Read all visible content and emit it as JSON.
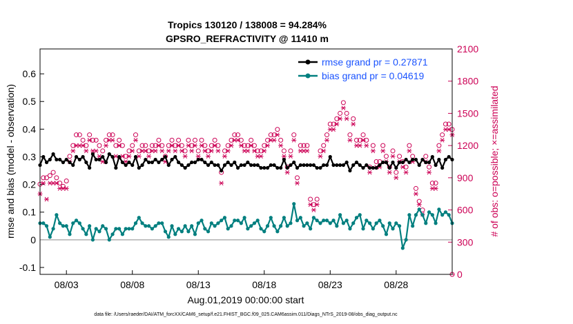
{
  "chart_data": {
    "type": "line",
    "title": "Tropics 130120 / 138008 = 94.284%",
    "subtitle": "GPSRO_REFRACTIVITY @ 11410 m",
    "xlabel": "Aug.01,2019 00:00:00 start",
    "ylabel": "rmse and bias (model - observation)",
    "ylabel_right": "# of obs: o=possible; ×=assimilated",
    "footer": "data file: /Users/raeder/DAI/ATM_forcXX/CAM6_setup/f.e21.FHIST_BGC.f09_025.CAM6assim.011/Diags_NTrS_2019-08/obs_diag_output.nc",
    "xlim": [
      1.0,
      32.25
    ],
    "ylim": [
      -0.125,
      0.69
    ],
    "ylim_right": [
      -0.0,
      2100.0
    ],
    "x_ticks": [
      {
        "value": 3,
        "label": "08/03"
      },
      {
        "value": 8,
        "label": "08/08"
      },
      {
        "value": 13,
        "label": "08/13"
      },
      {
        "value": 18,
        "label": "08/18"
      },
      {
        "value": 23,
        "label": "08/23"
      },
      {
        "value": 28,
        "label": "08/28"
      }
    ],
    "y_ticks": [
      {
        "value": -0.1,
        "label": "-0.1"
      },
      {
        "value": 0,
        "label": "0"
      },
      {
        "value": 0.1,
        "label": "0.1"
      },
      {
        "value": 0.2,
        "label": "0.2"
      },
      {
        "value": 0.3,
        "label": "0.3"
      },
      {
        "value": 0.4,
        "label": "0.4"
      },
      {
        "value": 0.5,
        "label": "0.5"
      },
      {
        "value": 0.6,
        "label": "0.6"
      }
    ],
    "y_ticks_right": [
      {
        "value": 0,
        "label": "0"
      },
      {
        "value": 300,
        "label": "300"
      },
      {
        "value": 600,
        "label": "600"
      },
      {
        "value": 900,
        "label": "900"
      },
      {
        "value": 1200,
        "label": "1200"
      },
      {
        "value": 1500,
        "label": "1500"
      },
      {
        "value": 1800,
        "label": "1800"
      },
      {
        "value": 2100,
        "label": "2100"
      }
    ],
    "legend_position": "top-right",
    "colors": {
      "rmse": "#000000",
      "bias": "#007f7f",
      "obs": "#cc0055",
      "zero_line": "#b0b0b0",
      "legend_text": "#1a53ff"
    },
    "series": [
      {
        "name": "rmse grand pr = 0.27871",
        "x": [
          1.0,
          1.25,
          1.5,
          1.75,
          2.0,
          2.25,
          2.5,
          2.75,
          3.0,
          3.25,
          3.5,
          3.75,
          4.0,
          4.25,
          4.5,
          4.75,
          5.0,
          5.25,
          5.5,
          5.75,
          6.0,
          6.25,
          6.5,
          6.75,
          7.0,
          7.25,
          7.5,
          7.75,
          8.0,
          8.25,
          8.5,
          8.75,
          9.0,
          9.25,
          9.5,
          9.75,
          10.0,
          10.25,
          10.5,
          10.75,
          11.0,
          11.25,
          11.5,
          11.75,
          12.0,
          12.25,
          12.5,
          12.75,
          13.0,
          13.25,
          13.5,
          13.75,
          14.0,
          14.25,
          14.5,
          14.75,
          15.0,
          15.25,
          15.5,
          15.75,
          16.0,
          16.25,
          16.5,
          16.75,
          17.0,
          17.25,
          17.5,
          17.75,
          18.0,
          18.25,
          18.5,
          18.75,
          19.0,
          19.25,
          19.5,
          19.75,
          20.0,
          20.25,
          20.5,
          20.75,
          21.0,
          21.25,
          21.5,
          21.75,
          22.0,
          22.25,
          22.5,
          22.75,
          23.0,
          23.25,
          23.5,
          23.75,
          24.0,
          24.25,
          24.5,
          24.75,
          25.0,
          25.25,
          25.5,
          25.75,
          26.0,
          26.25,
          26.5,
          26.75,
          27.0,
          27.25,
          27.5,
          27.75,
          28.0,
          28.25,
          28.5,
          28.75,
          29.0,
          29.25,
          29.5,
          29.75,
          30.0,
          30.25,
          30.5,
          30.75,
          31.0,
          31.25,
          31.5,
          31.75,
          32.0,
          32.25
        ],
        "values": [
          0.27,
          0.3,
          0.28,
          0.29,
          0.31,
          0.29,
          0.29,
          0.28,
          0.29,
          0.28,
          0.27,
          0.3,
          0.29,
          0.3,
          0.28,
          0.26,
          0.31,
          0.29,
          0.29,
          0.3,
          0.28,
          0.31,
          0.3,
          0.26,
          0.3,
          0.28,
          0.27,
          0.28,
          0.27,
          0.3,
          0.26,
          0.27,
          0.29,
          0.28,
          0.28,
          0.29,
          0.28,
          0.29,
          0.3,
          0.27,
          0.29,
          0.3,
          0.28,
          0.27,
          0.26,
          0.27,
          0.28,
          0.28,
          0.29,
          0.29,
          0.28,
          0.27,
          0.28,
          0.27,
          0.27,
          0.25,
          0.27,
          0.28,
          0.27,
          0.28,
          0.26,
          0.27,
          0.27,
          0.28,
          0.27,
          0.27,
          0.27,
          0.26,
          0.26,
          0.26,
          0.27,
          0.27,
          0.26,
          0.26,
          0.29,
          0.26,
          0.27,
          0.28,
          0.26,
          0.27,
          0.27,
          0.27,
          0.27,
          0.27,
          0.26,
          0.26,
          0.27,
          0.27,
          0.3,
          0.27,
          0.27,
          0.27,
          0.27,
          0.28,
          0.25,
          0.27,
          0.28,
          0.27,
          0.26,
          0.27,
          0.26,
          0.26,
          0.26,
          0.27,
          0.28,
          0.28,
          0.26,
          0.28,
          0.26,
          0.28,
          0.28,
          0.29,
          0.28,
          0.29,
          0.29,
          0.27,
          0.29,
          0.28,
          0.28,
          0.3,
          0.27,
          0.29,
          0.26,
          0.29,
          0.3,
          0.29
        ]
      },
      {
        "name": "bias grand pr = 0.04619",
        "x": [
          1.0,
          1.25,
          1.5,
          1.75,
          2.0,
          2.25,
          2.5,
          2.75,
          3.0,
          3.25,
          3.5,
          3.75,
          4.0,
          4.25,
          4.5,
          4.75,
          5.0,
          5.25,
          5.5,
          5.75,
          6.0,
          6.25,
          6.5,
          6.75,
          7.0,
          7.25,
          7.5,
          7.75,
          8.0,
          8.25,
          8.5,
          8.75,
          9.0,
          9.25,
          9.5,
          9.75,
          10.0,
          10.25,
          10.5,
          10.75,
          11.0,
          11.25,
          11.5,
          11.75,
          12.0,
          12.25,
          12.5,
          12.75,
          13.0,
          13.25,
          13.5,
          13.75,
          14.0,
          14.25,
          14.5,
          14.75,
          15.0,
          15.25,
          15.5,
          15.75,
          16.0,
          16.25,
          16.5,
          16.75,
          17.0,
          17.25,
          17.5,
          17.75,
          18.0,
          18.25,
          18.5,
          18.75,
          19.0,
          19.25,
          19.5,
          19.75,
          20.0,
          20.25,
          20.5,
          20.75,
          21.0,
          21.25,
          21.5,
          21.75,
          22.0,
          22.25,
          22.5,
          22.75,
          23.0,
          23.25,
          23.5,
          23.75,
          24.0,
          24.25,
          24.5,
          24.75,
          25.0,
          25.25,
          25.5,
          25.75,
          26.0,
          26.25,
          26.5,
          26.75,
          27.0,
          27.25,
          27.5,
          27.75,
          28.0,
          28.25,
          28.5,
          28.75,
          29.0,
          29.25,
          29.5,
          29.75,
          30.0,
          30.25,
          30.5,
          30.75,
          31.0,
          31.25,
          31.5,
          31.75,
          32.0,
          32.25
        ],
        "values": [
          0.06,
          0.06,
          0.05,
          0.01,
          0.04,
          0.09,
          0.06,
          0.05,
          0.05,
          0.02,
          0.06,
          0.07,
          0.06,
          0.04,
          0.02,
          0.05,
          0.0,
          0.04,
          0.03,
          0.05,
          0.04,
          0.0,
          0.02,
          0.04,
          0.04,
          0.02,
          0.04,
          0.04,
          0.04,
          0.06,
          0.08,
          0.06,
          0.05,
          0.05,
          0.04,
          0.05,
          0.06,
          0.06,
          0.03,
          0.01,
          0.05,
          0.02,
          0.04,
          0.03,
          0.05,
          0.03,
          0.05,
          0.02,
          0.06,
          0.07,
          0.04,
          0.03,
          0.06,
          0.05,
          0.06,
          0.07,
          0.08,
          0.04,
          0.05,
          0.07,
          0.07,
          0.06,
          0.08,
          0.04,
          0.05,
          0.06,
          0.07,
          0.04,
          0.03,
          0.05,
          0.08,
          0.05,
          0.03,
          0.05,
          0.08,
          0.05,
          0.06,
          0.13,
          0.07,
          0.08,
          0.05,
          0.06,
          0.04,
          0.08,
          0.07,
          0.06,
          0.07,
          0.07,
          0.06,
          0.07,
          0.05,
          0.09,
          0.06,
          0.07,
          0.04,
          0.06,
          0.08,
          0.09,
          0.04,
          0.07,
          0.06,
          0.04,
          0.06,
          0.07,
          0.05,
          0.02,
          0.06,
          0.04,
          0.06,
          0.05,
          -0.03,
          0.0,
          0.09,
          0.05,
          0.09,
          0.11,
          0.09,
          0.06,
          0.1,
          0.09,
          0.06,
          0.11,
          0.09,
          0.1,
          0.09,
          0.06
        ]
      }
    ],
    "obs_possible": {
      "x": [
        1.0,
        1.25,
        1.5,
        1.75,
        2.0,
        2.25,
        2.5,
        2.75,
        3.0,
        3.25,
        3.5,
        3.75,
        4.0,
        4.25,
        4.5,
        4.75,
        5.0,
        5.25,
        5.5,
        5.75,
        6.0,
        6.25,
        6.5,
        6.75,
        7.0,
        7.25,
        7.5,
        7.75,
        8.0,
        8.25,
        8.5,
        8.75,
        9.0,
        9.25,
        9.5,
        9.75,
        10.0,
        10.25,
        10.5,
        10.75,
        11.0,
        11.25,
        11.5,
        11.75,
        12.0,
        12.25,
        12.5,
        12.75,
        13.0,
        13.25,
        13.5,
        13.75,
        14.0,
        14.25,
        14.5,
        14.75,
        15.0,
        15.25,
        15.5,
        15.75,
        16.0,
        16.25,
        16.5,
        16.75,
        17.0,
        17.25,
        17.5,
        17.75,
        18.0,
        18.25,
        18.5,
        18.75,
        19.0,
        19.25,
        19.5,
        19.75,
        20.0,
        20.25,
        20.5,
        20.75,
        21.0,
        21.25,
        21.5,
        21.75,
        22.0,
        22.25,
        22.5,
        22.75,
        23.0,
        23.25,
        23.5,
        23.75,
        24.0,
        24.25,
        24.5,
        24.75,
        25.0,
        25.25,
        25.5,
        25.75,
        26.0,
        26.25,
        26.5,
        26.75,
        27.0,
        27.25,
        27.5,
        27.75,
        28.0,
        28.25,
        28.5,
        28.75,
        29.0,
        29.25,
        29.5,
        29.75,
        30.0,
        30.25,
        30.5,
        30.75,
        31.0,
        31.25,
        31.5,
        31.75,
        32.0,
        32.25
      ],
      "values": [
        840,
        900,
        900,
        920,
        950,
        900,
        850,
        820,
        870,
        1100,
        1200,
        1300,
        1300,
        1250,
        1200,
        1300,
        1250,
        1250,
        1200,
        1150,
        1250,
        1300,
        1300,
        1200,
        1250,
        1200,
        1100,
        1150,
        1200,
        1300,
        1150,
        1200,
        1200,
        1150,
        1200,
        1200,
        1250,
        1200,
        1100,
        1200,
        1250,
        1200,
        1250,
        1200,
        1150,
        1250,
        1200,
        1250,
        1150,
        1250,
        1200,
        1150,
        1200,
        1250,
        1200,
        950,
        1150,
        1200,
        1250,
        1300,
        1300,
        1250,
        1200,
        1200,
        1250,
        1200,
        1150,
        1150,
        1200,
        1250,
        1300,
        1300,
        1350,
        1250,
        1150,
        1000,
        1150,
        1300,
        900,
        1200,
        1200,
        1200,
        700,
        650,
        700,
        1150,
        1200,
        1300,
        1400,
        1400,
        1450,
        1500,
        1600,
        1500,
        1300,
        1450,
        1250,
        1250,
        1300,
        1250,
        1000,
        1200,
        1050,
        1050,
        1200,
        1100,
        1000,
        1150,
        950,
        1100,
        1050,
        1000,
        1200,
        1100,
        800,
        680,
        600,
        1100,
        1000,
        850,
        850,
        1200,
        1300,
        1400,
        1400,
        1350
      ]
    },
    "obs_assimilated": {
      "x": [
        1.0,
        1.25,
        1.5,
        1.75,
        2.0,
        2.25,
        2.5,
        2.75,
        3.0,
        3.25,
        3.5,
        3.75,
        4.0,
        4.25,
        4.5,
        4.75,
        5.0,
        5.25,
        5.5,
        5.75,
        6.0,
        6.25,
        6.5,
        6.75,
        7.0,
        7.25,
        7.5,
        7.75,
        8.0,
        8.25,
        8.5,
        8.75,
        9.0,
        9.25,
        9.5,
        9.75,
        10.0,
        10.25,
        10.5,
        10.75,
        11.0,
        11.25,
        11.5,
        11.75,
        12.0,
        12.25,
        12.5,
        12.75,
        13.0,
        13.25,
        13.5,
        13.75,
        14.0,
        14.25,
        14.5,
        14.75,
        15.0,
        15.25,
        15.5,
        15.75,
        16.0,
        16.25,
        16.5,
        16.75,
        17.0,
        17.25,
        17.5,
        17.75,
        18.0,
        18.25,
        18.5,
        18.75,
        19.0,
        19.25,
        19.5,
        19.75,
        20.0,
        20.25,
        20.5,
        20.75,
        21.0,
        21.25,
        21.5,
        21.75,
        22.0,
        22.25,
        22.5,
        22.75,
        23.0,
        23.25,
        23.5,
        23.75,
        24.0,
        24.25,
        24.5,
        24.75,
        25.0,
        25.25,
        25.5,
        25.75,
        26.0,
        26.25,
        26.5,
        26.75,
        27.0,
        27.25,
        27.5,
        27.75,
        28.0,
        28.25,
        28.5,
        28.75,
        29.0,
        29.25,
        29.5,
        29.75,
        30.0,
        30.25,
        30.5,
        30.75,
        31.0,
        31.25,
        31.5,
        31.75,
        32.0,
        32.25
      ],
      "values": [
        750,
        850,
        700,
        850,
        850,
        850,
        800,
        800,
        800,
        1050,
        1150,
        1200,
        1200,
        1200,
        1150,
        1250,
        1150,
        1150,
        1100,
        1050,
        1200,
        1250,
        1250,
        1100,
        1200,
        1100,
        1050,
        1100,
        1150,
        1250,
        1100,
        1150,
        1150,
        1100,
        1150,
        1150,
        1200,
        1150,
        1050,
        1150,
        1200,
        1150,
        1200,
        1150,
        1100,
        1200,
        1150,
        1200,
        1100,
        1200,
        1150,
        1100,
        1150,
        1200,
        1150,
        850,
        1100,
        1150,
        1200,
        1250,
        1250,
        1200,
        1150,
        1150,
        1200,
        1150,
        1100,
        1100,
        1150,
        1200,
        1250,
        1250,
        1300,
        1200,
        1100,
        950,
        1100,
        1250,
        850,
        1150,
        1150,
        1150,
        650,
        600,
        650,
        1100,
        1150,
        1250,
        1350,
        1350,
        1400,
        1450,
        1550,
        1450,
        1250,
        1400,
        1200,
        1200,
        1250,
        1200,
        950,
        1150,
        1000,
        1000,
        1150,
        1050,
        950,
        1100,
        900,
        1050,
        1000,
        950,
        1150,
        1050,
        750,
        650,
        560,
        1050,
        950,
        800,
        800,
        1150,
        1250,
        1350,
        1350,
        1300
      ]
    },
    "obs_extra": {
      "x": 32.25,
      "value": 0
    },
    "zero_line": 0
  }
}
